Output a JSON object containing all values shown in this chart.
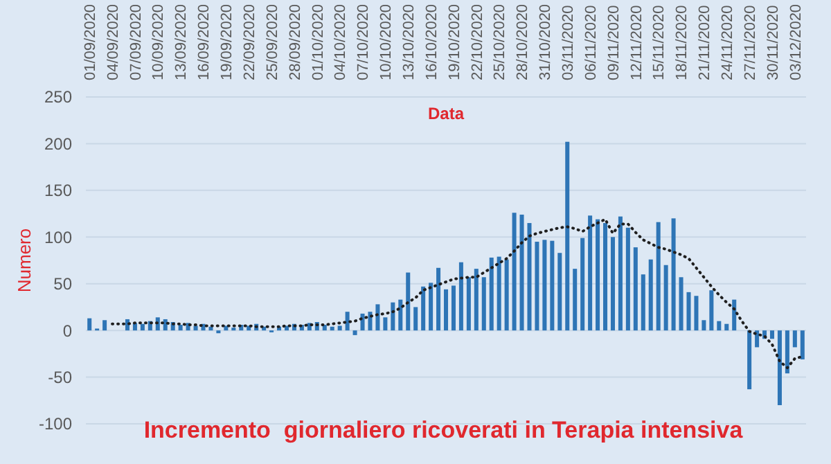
{
  "chart_data": {
    "type": "bar",
    "title": "Incremento  giornaliero ricoverati in Terapia intensiva",
    "xlabel": "Data",
    "ylabel": "Numero",
    "categories": [
      "01/09/2020",
      null,
      null,
      "04/09/2020",
      null,
      null,
      "07/09/2020",
      null,
      null,
      "10/09/2020",
      null,
      null,
      "13/09/2020",
      null,
      null,
      "16/09/2020",
      null,
      null,
      "19/09/2020",
      null,
      null,
      "22/09/2020",
      null,
      null,
      "25/09/2020",
      null,
      null,
      "28/09/2020",
      null,
      null,
      "01/10/2020",
      null,
      null,
      "04/10/2020",
      null,
      null,
      "07/10/2020",
      null,
      null,
      "10/10/2020",
      null,
      null,
      "13/10/2020",
      null,
      null,
      "16/10/2020",
      null,
      null,
      "19/10/2020",
      null,
      null,
      "22/10/2020",
      null,
      null,
      "25/10/2020",
      null,
      null,
      "28/10/2020",
      null,
      null,
      "31/10/2020",
      null,
      null,
      "03/11/2020",
      null,
      null,
      "06/11/2020",
      null,
      null,
      "09/11/2020",
      null,
      null,
      "12/11/2020",
      null,
      null,
      "15/11/2020",
      null,
      null,
      "18/11/2020",
      null,
      null,
      "21/11/2020",
      null,
      null,
      "24/11/2020",
      null,
      null,
      "27/11/2020",
      null,
      null,
      "30/11/2020",
      null,
      null,
      "03/12/2020",
      null
    ],
    "series": [
      {
        "color": "#2e75b6",
        "values": [
          13,
          2,
          11,
          0,
          0,
          12,
          8,
          7,
          10,
          14,
          12,
          9,
          6,
          8,
          5,
          7,
          4,
          -3,
          5,
          3,
          6,
          5,
          7,
          4,
          -2,
          4,
          5,
          7,
          6,
          8,
          9,
          6,
          4,
          5,
          20,
          -5,
          18,
          20,
          28,
          14,
          30,
          33,
          62,
          25,
          47,
          51,
          67,
          44,
          48,
          73,
          57,
          66,
          57,
          78,
          79,
          76,
          126,
          124,
          115,
          95,
          97,
          96,
          83,
          202,
          66,
          99,
          123,
          119,
          115,
          100,
          122,
          110,
          89,
          60,
          76,
          116,
          70,
          120,
          57,
          41,
          37,
          11,
          43,
          10,
          7,
          33,
          0,
          -63,
          -18,
          -9,
          -9,
          -80,
          -46,
          -18,
          -31
        ]
      },
      {
        "type": "line",
        "color": "#1f1f1f",
        "line_style": "dotted",
        "marker": "none",
        "values": [
          null,
          null,
          null,
          7,
          7,
          7,
          8,
          8,
          8,
          8,
          8,
          7,
          7,
          6,
          6,
          5,
          5,
          5,
          5,
          5,
          5,
          5,
          4,
          4,
          4,
          4,
          5,
          5,
          5,
          6,
          6,
          6,
          7,
          8,
          9,
          10,
          13,
          15,
          17,
          18,
          20,
          24,
          30,
          35,
          43,
          46,
          49,
          52,
          55,
          56,
          57,
          57,
          62,
          67,
          72,
          77,
          85,
          94,
          101,
          104,
          106,
          108,
          110,
          111,
          109,
          106,
          111,
          115,
          119,
          104,
          114,
          114,
          105,
          97,
          93,
          89,
          87,
          84,
          81,
          77,
          67,
          57,
          47,
          38,
          30,
          23,
          10,
          -1,
          -4,
          -6,
          -15,
          -33,
          -40,
          -30,
          -28
        ]
      }
    ],
    "ylim": [
      -100,
      250
    ],
    "yticks": [
      -100,
      -50,
      0,
      50,
      100,
      150,
      200,
      250
    ],
    "grid": "y"
  }
}
